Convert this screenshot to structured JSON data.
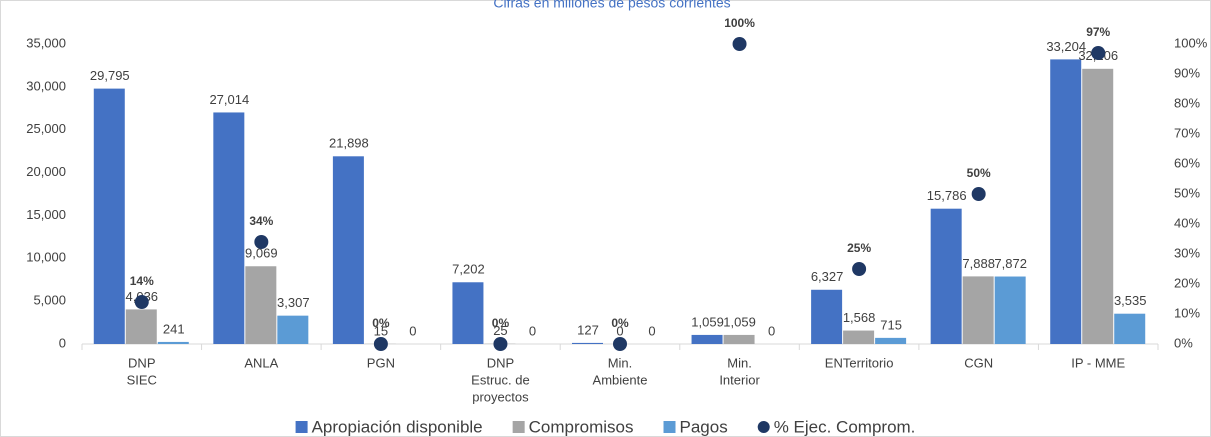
{
  "chart_data": {
    "type": "bar",
    "title": "Cifras en millones de pesos corrientes",
    "categories": [
      [
        "DNP",
        "SIEC"
      ],
      [
        "ANLA"
      ],
      [
        "PGN"
      ],
      [
        "DNP",
        "Estruc. de",
        "proyectos"
      ],
      [
        "Min.",
        "Ambiente"
      ],
      [
        "Min.",
        "Interior"
      ],
      [
        "ENTerritorio"
      ],
      [
        "CGN"
      ],
      [
        "IP - MME"
      ]
    ],
    "series": [
      {
        "name": "Apropiación disponible",
        "color": "#4472c4",
        "values": [
          29795,
          27014,
          21898,
          7202,
          127,
          1059,
          6327,
          15786,
          33204
        ],
        "value_labels": [
          "29,795",
          "27,014",
          "21,898",
          "7,202",
          "127",
          "1,059",
          "6,327",
          "15,786",
          "33,204"
        ]
      },
      {
        "name": "Compromisos",
        "color": "#a5a5a5",
        "values": [
          4036,
          9069,
          15,
          25,
          0,
          1059,
          1568,
          7888,
          32106
        ],
        "value_labels": [
          "4,036",
          "9,069",
          "15",
          "25",
          "0",
          "1,059",
          "1,568",
          "7,888",
          "32,106"
        ]
      },
      {
        "name": "Pagos",
        "color": "#5b9bd5",
        "values": [
          241,
          3307,
          0,
          0,
          0,
          0,
          715,
          7872,
          3535
        ],
        "value_labels": [
          "241",
          "3,307",
          "0",
          "0",
          "0",
          "0",
          "715",
          "7,872",
          "3,535"
        ]
      },
      {
        "name": "% Ejec. Comprom.",
        "color": "#1f3864",
        "type": "scatter",
        "axis": "y2",
        "values": [
          14,
          34,
          0,
          0,
          0,
          100,
          25,
          50,
          97
        ],
        "value_labels": [
          "14%",
          "34%",
          "0%",
          "0%",
          "0%",
          "100%",
          "25%",
          "50%",
          "97%"
        ]
      }
    ],
    "ylim": [
      0,
      35000
    ],
    "yticks": [
      0,
      {
        "value": 5000,
        "label": "5,000"
      },
      {
        "value": 10000,
        "label": "10,000"
      },
      {
        "value": 15000,
        "label": "15,000"
      },
      {
        "value": 20000,
        "label": "20,000"
      },
      {
        "value": 25000,
        "label": "25,000"
      },
      {
        "value": 30000,
        "label": "30,000"
      },
      {
        "value": 35000,
        "label": "35,000"
      }
    ],
    "y2lim": [
      0,
      100
    ],
    "y2ticks": [
      {
        "value": 0,
        "label": "0%"
      },
      {
        "value": 10,
        "label": "10%"
      },
      {
        "value": 20,
        "label": "20%"
      },
      {
        "value": 30,
        "label": "30%"
      },
      {
        "value": 40,
        "label": "40%"
      },
      {
        "value": 50,
        "label": "50%"
      },
      {
        "value": 60,
        "label": "60%"
      },
      {
        "value": 70,
        "label": "70%"
      },
      {
        "value": 80,
        "label": "80%"
      },
      {
        "value": 90,
        "label": "90%"
      },
      {
        "value": 100,
        "label": "100%"
      }
    ],
    "legend": "bottom"
  }
}
